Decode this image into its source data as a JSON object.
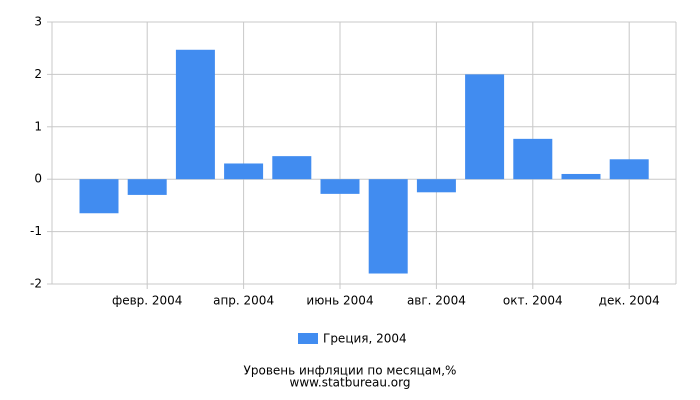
{
  "chart_data": {
    "type": "bar",
    "title": "Уровень инфляции по месяцам,%",
    "subtitle": "www.statbureau.org",
    "categories": [
      null,
      "февр. 2004",
      null,
      "апр. 2004",
      null,
      "июнь 2004",
      null,
      "авг. 2004",
      null,
      "окт. 2004",
      null,
      "дек. 2004"
    ],
    "series": [
      {
        "name": "Греция, 2004",
        "color": "#418cf0",
        "values": [
          -0.65,
          -0.3,
          2.47,
          0.3,
          0.44,
          -0.28,
          -1.8,
          -0.25,
          2.0,
          0.77,
          0.1,
          0.38
        ]
      }
    ],
    "ylim": [
      -2,
      3
    ],
    "yticks": [
      -2,
      -1,
      0,
      1,
      2,
      3
    ],
    "grid": true
  }
}
